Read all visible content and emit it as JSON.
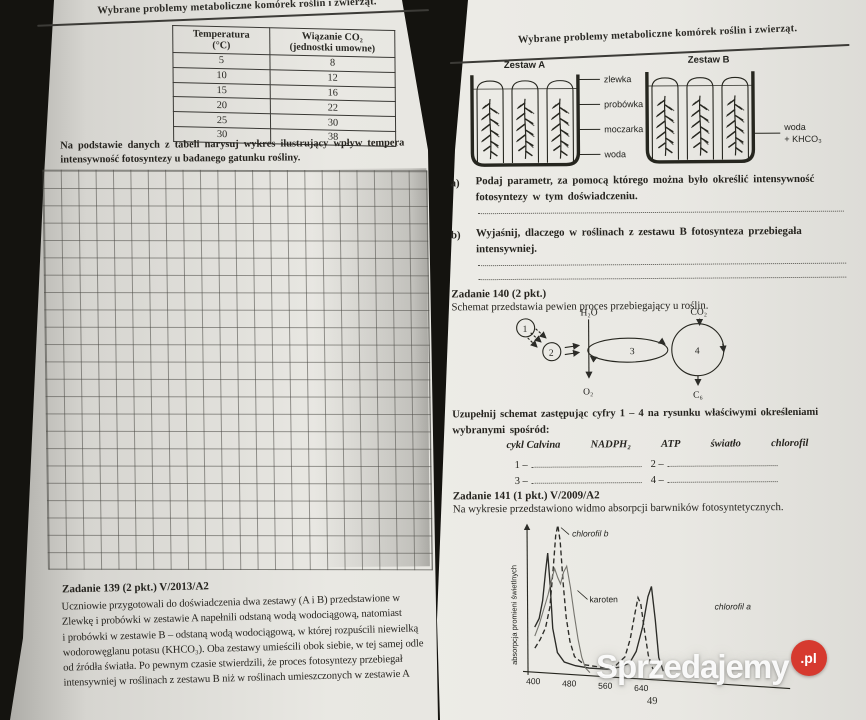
{
  "left_page": {
    "header": "Wybrane problemy metaboliczne komórek roślin i zwierząt.",
    "table": {
      "col1_header_line1": "Temperatura",
      "col1_header_line2": "(°C)",
      "col2_header_line1": "Wiązanie CO₂",
      "col2_header_line2": "(jednostki umowne)",
      "rows": [
        [
          "5",
          "8"
        ],
        [
          "10",
          "12"
        ],
        [
          "15",
          "16"
        ],
        [
          "20",
          "22"
        ],
        [
          "25",
          "30"
        ],
        [
          "30",
          "38"
        ]
      ]
    },
    "task_intro_line1": "Na podstawie danych z tabeli narysuj wykres ilustrujący wpływ tempera",
    "task_intro_line2": "intensywność fotosyntezy u badanego gatunku rośliny.",
    "task139": {
      "title": "Zadanie 139 (2 pkt.) V/2013/A2",
      "lines": [
        "Uczniowie przygotowali do doświadczenia dwa zestawy (A i B) przedstawione w",
        "Zlewkę i probówki w zestawie A napełnili odstaną wodą wodociągową, natomiast",
        "i probówki w zestawie B – odstaną wodą wodociągową, w której rozpuścili niewielką",
        "wodorowęglanu potasu (KHCO₃). Oba zestawy umieścili obok siebie, w tej samej odle",
        "od źródła światła. Po pewnym czasie stwierdzili, że proces fotosyntezy przebiegał",
        "intensywniej w roślinach z zestawu B niż w roślinach umieszczonych w zestawie A"
      ]
    }
  },
  "right_page": {
    "header": "Wybrane problemy metaboliczne komórek roślin i zwierząt.",
    "experiment": {
      "setA_label": "Zestaw A",
      "setB_label": "Zestaw B",
      "label_zlewka": "zlewka",
      "label_probowka": "probówka",
      "label_moczarka": "moczarka",
      "label_woda": "woda",
      "label_b_line1": "woda",
      "label_b_line2": "+ KHCO₃"
    },
    "qa": {
      "marker": "a)",
      "line1": "Podaj parametr, za pomocą którego można było określić intensywność",
      "line2": "fotosyntezy w tym doświadczeniu."
    },
    "qb": {
      "marker": "b)",
      "line1": "Wyjaśnij, dlaczego w roślinach z zestawu B fotosynteza przebiegała",
      "line2": "intensywniej."
    },
    "task140": {
      "title": "Zadanie 140 (2 pkt.)",
      "desc": "Schemat przedstawia pewien proces przebiegający u roślin.",
      "scheme_labels": {
        "h2o": "H₂O",
        "co2": "CO₂",
        "o2": "O₂",
        "c6": "C₆",
        "n1": "1",
        "n2": "2",
        "n3": "3",
        "n4": "4"
      },
      "fill_line1": "Uzupełnij schemat zastępując cyfry 1 – 4 na rysunku właściwymi określeniami",
      "fill_line2": "wybranymi spośród:",
      "options": [
        "cykl Calvina",
        "NADPH₂",
        "ATP",
        "światło",
        "chlorofil"
      ],
      "answers": [
        "1 –",
        "2 –",
        "3 –",
        "4 –"
      ]
    },
    "task141": {
      "title": "Zadanie 141 (1 pkt.) V/2009/A2",
      "desc": "Na wykresie przedstawiono widmo absorpcji barwników fotosyntetycznych."
    },
    "page_number": "49"
  },
  "watermark": {
    "text": "Sprzedajemy",
    "badge_label": ".pl",
    "badge_color": "#d63a2f"
  },
  "chart_data": {
    "type": "line",
    "title": "widmo absorpcji barwników fotosyntetycznych",
    "ylabel": "absorpcja promieni świetlnych",
    "x_ticks": [
      400,
      480,
      560,
      640
    ],
    "xlim": [
      395,
      700
    ],
    "ylim": [
      0,
      100
    ],
    "grid": false,
    "legend_position": "labels-on-curves",
    "series": [
      {
        "name": "chlorofil a",
        "style": "solid",
        "points": [
          [
            400,
            30
          ],
          [
            410,
            36
          ],
          [
            418,
            48
          ],
          [
            425,
            68
          ],
          [
            430,
            80
          ],
          [
            435,
            58
          ],
          [
            440,
            30
          ],
          [
            450,
            14
          ],
          [
            465,
            8
          ],
          [
            490,
            6
          ],
          [
            520,
            5
          ],
          [
            560,
            5
          ],
          [
            590,
            7
          ],
          [
            610,
            10
          ],
          [
            625,
            18
          ],
          [
            640,
            35
          ],
          [
            652,
            55
          ],
          [
            660,
            62
          ],
          [
            668,
            40
          ],
          [
            675,
            15
          ],
          [
            685,
            6
          ]
        ]
      },
      {
        "name": "chlorofil b",
        "style": "dashed",
        "points": [
          [
            400,
            16
          ],
          [
            412,
            22
          ],
          [
            424,
            30
          ],
          [
            434,
            44
          ],
          [
            442,
            70
          ],
          [
            448,
            92
          ],
          [
            453,
            99
          ],
          [
            458,
            88
          ],
          [
            464,
            60
          ],
          [
            470,
            38
          ],
          [
            478,
            22
          ],
          [
            488,
            12
          ],
          [
            510,
            7
          ],
          [
            550,
            6
          ],
          [
            580,
            8
          ],
          [
            600,
            14
          ],
          [
            612,
            26
          ],
          [
            622,
            42
          ],
          [
            630,
            54
          ],
          [
            636,
            50
          ],
          [
            644,
            32
          ],
          [
            652,
            16
          ],
          [
            662,
            7
          ]
        ]
      },
      {
        "name": "karoten",
        "style": "thin",
        "points": [
          [
            400,
            24
          ],
          [
            410,
            32
          ],
          [
            420,
            42
          ],
          [
            430,
            52
          ],
          [
            438,
            62
          ],
          [
            445,
            70
          ],
          [
            452,
            64
          ],
          [
            458,
            60
          ],
          [
            465,
            68
          ],
          [
            472,
            72
          ],
          [
            480,
            58
          ],
          [
            488,
            40
          ],
          [
            496,
            24
          ],
          [
            504,
            12
          ],
          [
            512,
            5
          ],
          [
            522,
            2
          ]
        ]
      }
    ]
  }
}
